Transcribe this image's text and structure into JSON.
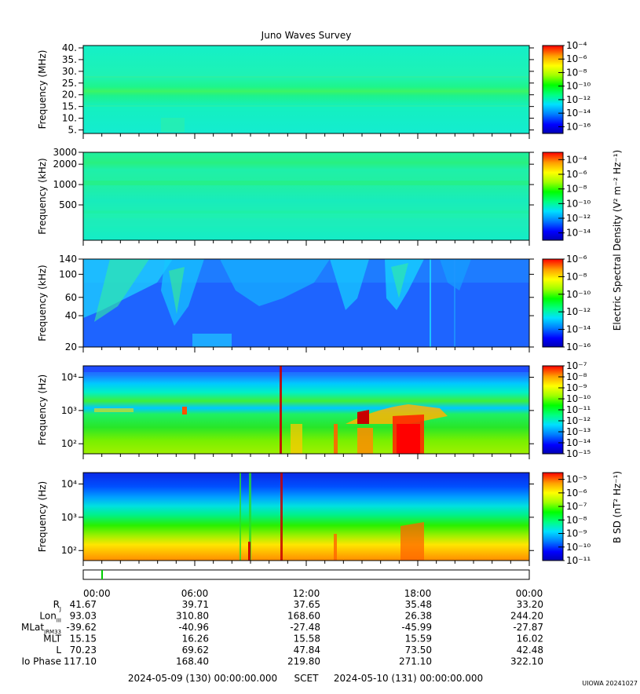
{
  "title": "Juno Waves Survey",
  "colors": {
    "frame": "#000000",
    "background": "#ffffff",
    "marker": "#00cc00"
  },
  "colorscale": [
    "#0000b4",
    "#0000ff",
    "#0080ff",
    "#00e0ff",
    "#00ff80",
    "#00ff00",
    "#a0ff00",
    "#ffff00",
    "#ffa000",
    "#ff0000"
  ],
  "side_labels": {
    "electric": "Electric Spectral Density (V² m⁻² Hz⁻¹)",
    "magnetic": "B SD (nT² Hz⁻¹)"
  },
  "chart_data": [
    {
      "type": "heatmap",
      "id": "panel1",
      "ylabel": "Frequency (MHz)",
      "yscale": "linear",
      "ylim": [
        3.5,
        41
      ],
      "yticks": [
        5,
        10,
        15,
        20,
        25,
        30,
        35,
        40
      ],
      "yticklabels": [
        "5.",
        "10.",
        "15.",
        "20.",
        "25.",
        "30.",
        "35.",
        "40."
      ],
      "colorbar": {
        "scale": "log",
        "ylim": [
          -17,
          -4
        ],
        "ticks": [
          -16,
          -14,
          -12,
          -10,
          -8,
          -6,
          -4
        ],
        "ticklabels": [
          "10⁻¹⁶",
          "10⁻¹⁴",
          "10⁻¹²",
          "10⁻¹⁰",
          "10⁻⁸",
          "10⁻⁶",
          "10⁻⁴"
        ]
      }
    },
    {
      "type": "heatmap",
      "id": "panel2",
      "ylabel": "Frequency (kHz)",
      "yscale": "log",
      "ylim": [
        150,
        3000
      ],
      "yticks": [
        500,
        1000,
        2000,
        3000
      ],
      "yticklabels": [
        "500",
        "1000",
        "2000",
        "3000"
      ],
      "colorbar": {
        "scale": "log",
        "ylim": [
          -15,
          -3
        ],
        "ticks": [
          -14,
          -12,
          -10,
          -8,
          -6,
          -4
        ],
        "ticklabels": [
          "10⁻¹⁴",
          "10⁻¹²",
          "10⁻¹⁰",
          "10⁻⁸",
          "10⁻⁶",
          "10⁻⁴"
        ]
      }
    },
    {
      "type": "heatmap",
      "id": "panel3",
      "ylabel": "Frequency (kHz)",
      "yscale": "log",
      "ylim": [
        20,
        140
      ],
      "yticks": [
        20,
        40,
        60,
        100,
        140
      ],
      "yticklabels": [
        "20",
        "40",
        "60",
        "100",
        "140"
      ],
      "colorbar": {
        "scale": "log",
        "ylim": [
          -16,
          -6
        ],
        "ticks": [
          -16,
          -14,
          -12,
          -10,
          -8,
          -6
        ],
        "ticklabels": [
          "10⁻¹⁶",
          "10⁻¹⁴",
          "10⁻¹²",
          "10⁻¹⁰",
          "10⁻⁸",
          "10⁻⁶"
        ]
      }
    },
    {
      "type": "heatmap",
      "id": "panel4",
      "ylabel": "Frequency (Hz)",
      "yscale": "log",
      "ylim": [
        50,
        22000
      ],
      "yticks": [
        100,
        1000,
        10000
      ],
      "yticklabels": [
        "10²",
        "10³",
        "10⁴"
      ],
      "colorbar": {
        "scale": "log",
        "ylim": [
          -15,
          -7
        ],
        "ticks": [
          -15,
          -14,
          -13,
          -12,
          -11,
          -10,
          -9,
          -8,
          -7
        ],
        "ticklabels": [
          "10⁻¹⁵",
          "10⁻¹⁴",
          "10⁻¹³",
          "10⁻¹²",
          "10⁻¹¹",
          "10⁻¹⁰",
          "10⁻⁹",
          "10⁻⁸",
          "10⁻⁷"
        ]
      }
    },
    {
      "type": "heatmap",
      "id": "panel5",
      "ylabel": "Frequency (Hz)",
      "yscale": "log",
      "ylim": [
        50,
        22000
      ],
      "yticks": [
        100,
        1000,
        10000
      ],
      "yticklabels": [
        "10²",
        "10³",
        "10⁴"
      ],
      "colorbar": {
        "scale": "log",
        "ylim": [
          -11,
          -4.5
        ],
        "ticks": [
          -11,
          -10,
          -9,
          -8,
          -7,
          -6,
          -5
        ],
        "ticklabels": [
          "10⁻¹¹",
          "10⁻¹⁰",
          "10⁻⁹",
          "10⁻⁸",
          "10⁻⁷",
          "10⁻⁶",
          "10⁻⁵"
        ]
      }
    }
  ],
  "ephemeris": {
    "times": [
      "00:00",
      "06:00",
      "12:00",
      "18:00",
      "00:00"
    ],
    "rows": [
      {
        "label": "R",
        "sub": "J",
        "values": [
          "41.67",
          "39.71",
          "37.65",
          "35.48",
          "33.20"
        ]
      },
      {
        "label": "Lon",
        "sub": "III",
        "values": [
          "93.03",
          "310.80",
          "168.60",
          "26.38",
          "244.20"
        ]
      },
      {
        "label": "MLat",
        "sub": "JRM33",
        "values": [
          "-39.62",
          "-40.96",
          "-27.48",
          "-45.99",
          "-27.87"
        ]
      },
      {
        "label": "MLT",
        "sub": "",
        "values": [
          "15.15",
          "16.26",
          "15.58",
          "15.59",
          "16.02"
        ]
      },
      {
        "label": "L",
        "sub": "",
        "values": [
          "70.23",
          "69.62",
          "47.84",
          "73.50",
          "42.48"
        ]
      },
      {
        "label": "Io Phase",
        "sub": "",
        "values": [
          "117.10",
          "168.40",
          "219.80",
          "271.10",
          "322.10"
        ]
      }
    ]
  },
  "time_range": {
    "start": "2024-05-09 (130) 00:00:00.000",
    "label": "SCET",
    "end": "2024-05-10 (131) 00:00:00.000"
  },
  "credit": "UIOWA 20241027"
}
